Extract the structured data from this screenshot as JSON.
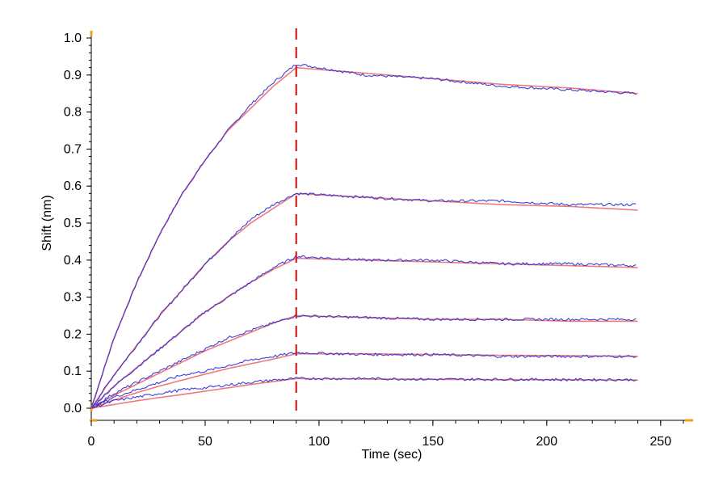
{
  "chart_data": {
    "type": "line",
    "title": "",
    "xlabel": "Time (sec)",
    "ylabel": "Shift (nm)",
    "xlim": [
      0,
      260
    ],
    "ylim": [
      0.0,
      1.0
    ],
    "x_ticks": [
      0,
      50,
      100,
      150,
      200,
      250
    ],
    "x_tick_labels": [
      "0",
      "50",
      "100",
      "150",
      "200",
      "250"
    ],
    "y_ticks": [
      0.0,
      0.1,
      0.2,
      0.3,
      0.4,
      0.5,
      0.6,
      0.7,
      0.8,
      0.9,
      1.0
    ],
    "y_tick_labels": [
      "0.0",
      "0.1",
      "0.2",
      "0.3",
      "0.4",
      "0.5",
      "0.6",
      "0.7",
      "0.8",
      "0.9",
      "1.0"
    ],
    "grid": false,
    "legend": "none",
    "association_end_marker": {
      "x": 90,
      "color": "#cc2222",
      "style": "dashed"
    },
    "colors": {
      "measured": "#2a2ad6",
      "fit": "#f07a7a",
      "axis": "#000000",
      "axis_end_marker": "#f0a020"
    },
    "series_note_style": "measured (blue, noisy) with fitted curve (red) per concentration",
    "series": [
      {
        "x": [
          0,
          10,
          20,
          30,
          40,
          50,
          60,
          70,
          80,
          90,
          120,
          150,
          180,
          210,
          240
        ],
        "measured": [
          0.0,
          0.19,
          0.34,
          0.47,
          0.58,
          0.67,
          0.75,
          0.82,
          0.88,
          0.93,
          0.9,
          0.89,
          0.87,
          0.86,
          0.85
        ],
        "fit": [
          0.0,
          0.19,
          0.34,
          0.47,
          0.58,
          0.67,
          0.75,
          0.81,
          0.87,
          0.92,
          0.905,
          0.89,
          0.875,
          0.865,
          0.85
        ]
      },
      {
        "x": [
          0,
          10,
          20,
          30,
          40,
          50,
          60,
          70,
          80,
          90,
          120,
          150,
          180,
          210,
          240
        ],
        "measured": [
          0.0,
          0.09,
          0.17,
          0.25,
          0.32,
          0.39,
          0.45,
          0.51,
          0.55,
          0.58,
          0.57,
          0.56,
          0.56,
          0.55,
          0.55
        ],
        "fit": [
          0.0,
          0.09,
          0.17,
          0.25,
          0.32,
          0.39,
          0.45,
          0.5,
          0.54,
          0.58,
          0.57,
          0.56,
          0.55,
          0.545,
          0.535
        ]
      },
      {
        "x": [
          0,
          10,
          20,
          30,
          40,
          50,
          60,
          70,
          80,
          90,
          120,
          150,
          180,
          210,
          240
        ],
        "measured": [
          0.0,
          0.06,
          0.11,
          0.16,
          0.21,
          0.26,
          0.3,
          0.34,
          0.38,
          0.41,
          0.4,
          0.4,
          0.39,
          0.39,
          0.385
        ],
        "fit": [
          0.0,
          0.06,
          0.11,
          0.16,
          0.21,
          0.26,
          0.3,
          0.34,
          0.375,
          0.405,
          0.4,
          0.395,
          0.39,
          0.385,
          0.38
        ]
      },
      {
        "x": [
          0,
          10,
          20,
          30,
          40,
          50,
          60,
          70,
          80,
          90,
          120,
          150,
          180,
          210,
          240
        ],
        "measured": [
          0.0,
          0.04,
          0.07,
          0.1,
          0.13,
          0.16,
          0.19,
          0.21,
          0.23,
          0.25,
          0.245,
          0.24,
          0.24,
          0.24,
          0.24
        ],
        "fit": [
          0.0,
          0.035,
          0.065,
          0.095,
          0.125,
          0.155,
          0.18,
          0.205,
          0.23,
          0.25,
          0.245,
          0.24,
          0.24,
          0.235,
          0.235
        ]
      },
      {
        "x": [
          0,
          10,
          20,
          30,
          40,
          50,
          60,
          70,
          80,
          90,
          120,
          150,
          180,
          210,
          240
        ],
        "measured": [
          0.0,
          0.03,
          0.05,
          0.07,
          0.09,
          0.1,
          0.115,
          0.13,
          0.14,
          0.15,
          0.145,
          0.145,
          0.14,
          0.14,
          0.14
        ],
        "fit": [
          0.0,
          0.022,
          0.042,
          0.06,
          0.076,
          0.092,
          0.107,
          0.12,
          0.133,
          0.147,
          0.147,
          0.145,
          0.143,
          0.142,
          0.14
        ]
      },
      {
        "x": [
          0,
          10,
          20,
          30,
          40,
          50,
          60,
          70,
          80,
          90,
          120,
          150,
          180,
          210,
          240
        ],
        "measured": [
          0.0,
          0.02,
          0.03,
          0.04,
          0.05,
          0.055,
          0.063,
          0.07,
          0.076,
          0.08,
          0.08,
          0.078,
          0.078,
          0.077,
          0.077
        ],
        "fit": [
          0.0,
          0.01,
          0.02,
          0.029,
          0.037,
          0.046,
          0.055,
          0.064,
          0.072,
          0.08,
          0.079,
          0.078,
          0.077,
          0.077,
          0.076
        ]
      }
    ]
  }
}
